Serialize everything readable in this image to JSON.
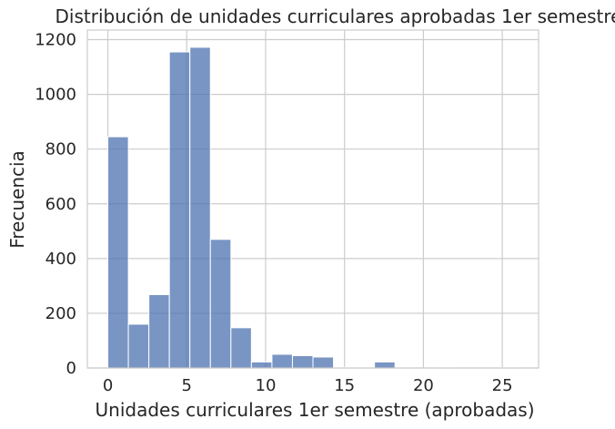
{
  "chart_data": {
    "type": "bar",
    "title": "Distribución de unidades curriculares aprobadas 1er semestre",
    "xlabel": "Unidades curriculares 1er semestre (aprobadas)",
    "ylabel": "Frecuencia",
    "xlim": [
      -1.3,
      27.3
    ],
    "ylim": [
      0,
      1235
    ],
    "xticks": [
      0,
      5,
      10,
      15,
      20,
      25
    ],
    "yticks": [
      0,
      200,
      400,
      600,
      800,
      1000,
      1200
    ],
    "grid": true,
    "bar_color": "#4c72b0",
    "bins": [
      {
        "x0": 0.0,
        "x1": 1.3,
        "value": 845
      },
      {
        "x0": 1.3,
        "x1": 2.6,
        "value": 160
      },
      {
        "x0": 2.6,
        "x1": 3.9,
        "value": 268
      },
      {
        "x0": 3.9,
        "x1": 5.2,
        "value": 1155
      },
      {
        "x0": 5.2,
        "x1": 6.5,
        "value": 1172
      },
      {
        "x0": 6.5,
        "x1": 7.8,
        "value": 470
      },
      {
        "x0": 7.8,
        "x1": 9.1,
        "value": 147
      },
      {
        "x0": 9.1,
        "x1": 10.4,
        "value": 22
      },
      {
        "x0": 10.4,
        "x1": 11.7,
        "value": 50
      },
      {
        "x0": 11.7,
        "x1": 13.0,
        "value": 45
      },
      {
        "x0": 13.0,
        "x1": 14.3,
        "value": 40
      },
      {
        "x0": 14.3,
        "x1": 15.6,
        "value": 2
      },
      {
        "x0": 15.6,
        "x1": 16.9,
        "value": 1
      },
      {
        "x0": 16.9,
        "x1": 18.2,
        "value": 22
      },
      {
        "x0": 18.2,
        "x1": 19.5,
        "value": 1
      },
      {
        "x0": 19.5,
        "x1": 20.8,
        "value": 0
      },
      {
        "x0": 20.8,
        "x1": 22.1,
        "value": 1
      },
      {
        "x0": 22.1,
        "x1": 23.4,
        "value": 0
      },
      {
        "x0": 23.4,
        "x1": 24.7,
        "value": 0
      },
      {
        "x0": 24.7,
        "x1": 26.0,
        "value": 1
      }
    ]
  }
}
